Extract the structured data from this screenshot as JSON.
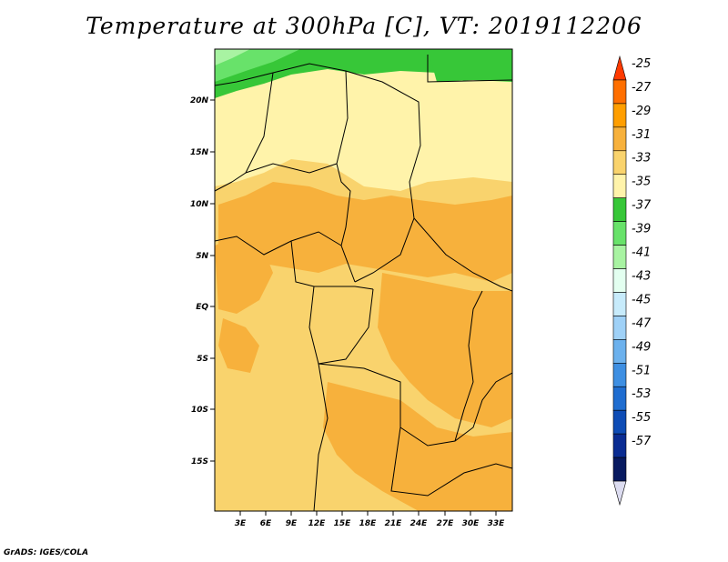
{
  "title": "Temperature at 300hPa [C], VT: 2019112206",
  "credit": "GrADS: IGES/COLA",
  "map": {
    "variable": "Temperature",
    "level": "300hPa",
    "units": "C",
    "valid_time": "2019112206",
    "lon_range": [
      0,
      35
    ],
    "lat_range": [
      -20,
      25
    ],
    "lat_ticks": [
      "20N",
      "15N",
      "10N",
      "5N",
      "EQ",
      "5S",
      "10S",
      "15S"
    ],
    "lon_ticks": [
      "3E",
      "6E",
      "9E",
      "12E",
      "15E",
      "18E",
      "21E",
      "24E",
      "27E",
      "30E",
      "33E"
    ]
  },
  "colorbar": {
    "labels": [
      "-25",
      "-27",
      "-29",
      "-31",
      "-33",
      "-35",
      "-37",
      "-39",
      "-41",
      "-43",
      "-45",
      "-47",
      "-49",
      "-51",
      "-53",
      "-55",
      "-57"
    ],
    "colors": [
      "#ff3a00",
      "#ff6f00",
      "#ff9e00",
      "#f7b13c",
      "#f9d36d",
      "#fff3aa",
      "#37c738",
      "#68e26a",
      "#a8f3a2",
      "#e3fff0",
      "#c7ebfb",
      "#9fd1f7",
      "#6cb1ed",
      "#3e8fe2",
      "#1f6dd0",
      "#0e4cb5",
      "#0a2c92",
      "#081a60",
      "#dcdcf0"
    ]
  }
}
